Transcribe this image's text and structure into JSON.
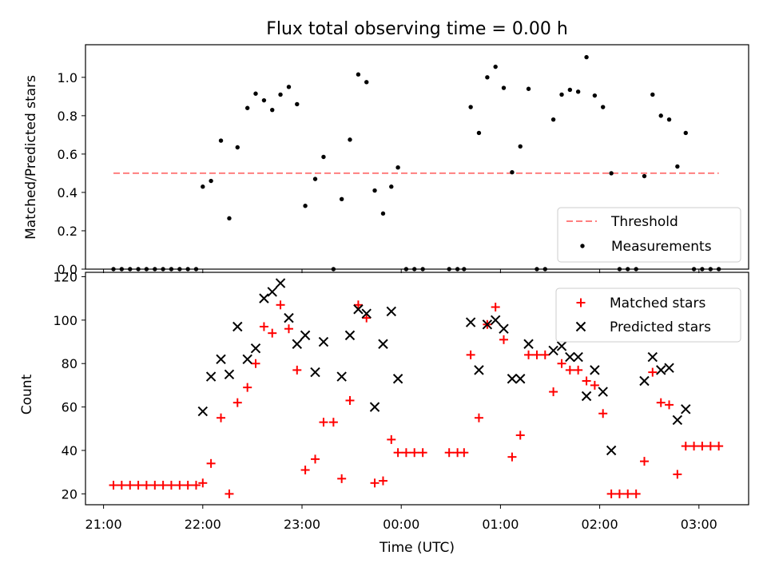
{
  "chart_data": {
    "type": "scatter",
    "title": "Flux total observing time = 0.00 h",
    "xlabel": "Time (UTC)",
    "x_ticks": [
      "21:00",
      "22:00",
      "23:00",
      "00:00",
      "01:00",
      "02:00",
      "03:00"
    ],
    "colors": {
      "threshold": "#ff7f7f",
      "measurements": "#000000",
      "matched": "#ff0000",
      "predicted": "#000000"
    },
    "top": {
      "ylabel": "Matched/Predicted stars",
      "ylim": [
        0,
        1.17
      ],
      "y_ticks": [
        "0.0",
        "0.2",
        "0.4",
        "0.6",
        "0.8",
        "1.0"
      ],
      "legend": [
        "Threshold",
        "Measurements"
      ],
      "threshold": {
        "value": 0.5,
        "x_start": 21.1,
        "x_end": 27.2
      },
      "measurements": [
        [
          21.1,
          0
        ],
        [
          21.183,
          0
        ],
        [
          21.267,
          0
        ],
        [
          21.35,
          0
        ],
        [
          21.433,
          0
        ],
        [
          21.517,
          0
        ],
        [
          21.6,
          0
        ],
        [
          21.683,
          0
        ],
        [
          21.767,
          0
        ],
        [
          21.85,
          0
        ],
        [
          21.933,
          0
        ],
        [
          22.0,
          0.43
        ],
        [
          22.083,
          0.46
        ],
        [
          22.183,
          0.67
        ],
        [
          22.267,
          0.265
        ],
        [
          22.35,
          0.635
        ],
        [
          22.45,
          0.84
        ],
        [
          22.533,
          0.915
        ],
        [
          22.617,
          0.88
        ],
        [
          22.7,
          0.83
        ],
        [
          22.783,
          0.91
        ],
        [
          22.867,
          0.95
        ],
        [
          22.95,
          0.86
        ],
        [
          23.033,
          0.33
        ],
        [
          23.133,
          0.47
        ],
        [
          23.217,
          0.585
        ],
        [
          23.317,
          0
        ],
        [
          23.4,
          0.365
        ],
        [
          23.483,
          0.675
        ],
        [
          23.567,
          1.015
        ],
        [
          23.65,
          0.975
        ],
        [
          23.733,
          0.41
        ],
        [
          23.817,
          0.29
        ],
        [
          23.9,
          0.43
        ],
        [
          23.967,
          0.53
        ],
        [
          24.05,
          0
        ],
        [
          24.133,
          0
        ],
        [
          24.217,
          0
        ],
        [
          24.483,
          0
        ],
        [
          24.567,
          0
        ],
        [
          24.633,
          0
        ],
        [
          24.7,
          0.845
        ],
        [
          24.783,
          0.71
        ],
        [
          24.867,
          1.0
        ],
        [
          24.95,
          1.055
        ],
        [
          25.033,
          0.945
        ],
        [
          25.117,
          0.505
        ],
        [
          25.2,
          0.64
        ],
        [
          25.283,
          0.94
        ],
        [
          25.367,
          0
        ],
        [
          25.45,
          0
        ],
        [
          25.533,
          0.78
        ],
        [
          25.617,
          0.91
        ],
        [
          25.7,
          0.935
        ],
        [
          25.783,
          0.925
        ],
        [
          25.867,
          1.105
        ],
        [
          25.95,
          0.905
        ],
        [
          26.033,
          0.845
        ],
        [
          26.117,
          0.5
        ],
        [
          26.2,
          0
        ],
        [
          26.283,
          0
        ],
        [
          26.367,
          0
        ],
        [
          26.45,
          0.485
        ],
        [
          26.533,
          0.91
        ],
        [
          26.617,
          0.8
        ],
        [
          26.7,
          0.78
        ],
        [
          26.783,
          0.535
        ],
        [
          26.867,
          0.71
        ],
        [
          26.95,
          0
        ],
        [
          27.033,
          0
        ],
        [
          27.117,
          0
        ],
        [
          27.2,
          0
        ]
      ]
    },
    "bottom": {
      "ylabel": "Count",
      "ylim": [
        15,
        122
      ],
      "y_ticks": [
        "20",
        "40",
        "60",
        "80",
        "100",
        "120"
      ],
      "series": [
        {
          "name": "Matched stars",
          "marker": "plus",
          "points": [
            [
              21.1,
              24
            ],
            [
              21.183,
              24
            ],
            [
              21.267,
              24
            ],
            [
              21.35,
              24
            ],
            [
              21.433,
              24
            ],
            [
              21.517,
              24
            ],
            [
              21.6,
              24
            ],
            [
              21.683,
              24
            ],
            [
              21.767,
              24
            ],
            [
              21.85,
              24
            ],
            [
              21.933,
              24
            ],
            [
              22.0,
              25
            ],
            [
              22.083,
              34
            ],
            [
              22.183,
              55
            ],
            [
              22.267,
              20
            ],
            [
              22.35,
              62
            ],
            [
              22.45,
              69
            ],
            [
              22.533,
              80
            ],
            [
              22.617,
              97
            ],
            [
              22.7,
              94
            ],
            [
              22.783,
              107
            ],
            [
              22.867,
              96
            ],
            [
              22.95,
              77
            ],
            [
              23.033,
              31
            ],
            [
              23.133,
              36
            ],
            [
              23.217,
              53
            ],
            [
              23.317,
              53
            ],
            [
              23.4,
              27
            ],
            [
              23.483,
              63
            ],
            [
              23.567,
              107
            ],
            [
              23.65,
              101
            ],
            [
              23.733,
              25
            ],
            [
              23.817,
              26
            ],
            [
              23.9,
              45
            ],
            [
              23.967,
              39
            ],
            [
              24.05,
              39
            ],
            [
              24.133,
              39
            ],
            [
              24.217,
              39
            ],
            [
              24.483,
              39
            ],
            [
              24.567,
              39
            ],
            [
              24.633,
              39
            ],
            [
              24.7,
              84
            ],
            [
              24.783,
              55
            ],
            [
              24.867,
              98
            ],
            [
              24.95,
              106
            ],
            [
              25.033,
              91
            ],
            [
              25.117,
              37
            ],
            [
              25.2,
              47
            ],
            [
              25.283,
              84
            ],
            [
              25.367,
              84
            ],
            [
              25.45,
              84
            ],
            [
              25.533,
              67
            ],
            [
              25.617,
              80
            ],
            [
              25.7,
              77
            ],
            [
              25.783,
              77
            ],
            [
              25.867,
              72
            ],
            [
              25.95,
              70
            ],
            [
              26.033,
              57
            ],
            [
              26.117,
              20
            ],
            [
              26.2,
              20
            ],
            [
              26.283,
              20
            ],
            [
              26.367,
              20
            ],
            [
              26.45,
              35
            ],
            [
              26.533,
              76
            ],
            [
              26.617,
              62
            ],
            [
              26.7,
              61
            ],
            [
              26.783,
              29
            ],
            [
              26.867,
              42
            ],
            [
              26.95,
              42
            ],
            [
              27.033,
              42
            ],
            [
              27.117,
              42
            ],
            [
              27.2,
              42
            ]
          ]
        },
        {
          "name": "Predicted stars",
          "marker": "x",
          "points": [
            [
              22.0,
              58
            ],
            [
              22.083,
              74
            ],
            [
              22.183,
              82
            ],
            [
              22.267,
              75
            ],
            [
              22.35,
              97
            ],
            [
              22.45,
              82
            ],
            [
              22.533,
              87
            ],
            [
              22.617,
              110
            ],
            [
              22.7,
              113
            ],
            [
              22.783,
              117
            ],
            [
              22.867,
              101
            ],
            [
              22.95,
              89
            ],
            [
              23.033,
              93
            ],
            [
              23.133,
              76
            ],
            [
              23.217,
              90
            ],
            [
              23.4,
              74
            ],
            [
              23.483,
              93
            ],
            [
              23.567,
              105
            ],
            [
              23.65,
              103
            ],
            [
              23.733,
              60
            ],
            [
              23.817,
              89
            ],
            [
              23.9,
              104
            ],
            [
              23.967,
              73
            ],
            [
              24.7,
              99
            ],
            [
              24.783,
              77
            ],
            [
              24.867,
              98
            ],
            [
              24.95,
              100
            ],
            [
              25.033,
              96
            ],
            [
              25.117,
              73
            ],
            [
              25.2,
              73
            ],
            [
              25.283,
              89
            ],
            [
              25.533,
              86
            ],
            [
              25.617,
              88
            ],
            [
              25.7,
              83
            ],
            [
              25.783,
              83
            ],
            [
              25.867,
              65
            ],
            [
              25.95,
              77
            ],
            [
              26.033,
              67
            ],
            [
              26.117,
              40
            ],
            [
              26.45,
              72
            ],
            [
              26.533,
              83
            ],
            [
              26.617,
              77
            ],
            [
              26.7,
              78
            ],
            [
              26.783,
              54
            ],
            [
              26.867,
              59
            ]
          ]
        }
      ]
    }
  }
}
